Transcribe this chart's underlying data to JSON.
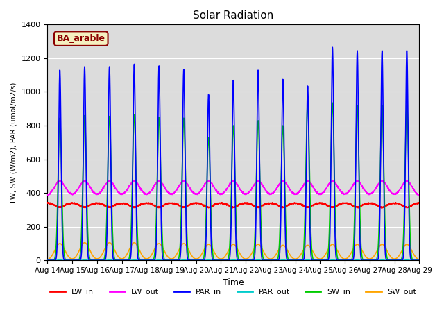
{
  "title": "Solar Radiation",
  "xlabel": "Time",
  "ylabel": "LW, SW (W/m2), PAR (umol/m2/s)",
  "ylim": [
    0,
    1400
  ],
  "annotation": "BA_arable",
  "annotation_color": "#8B0000",
  "annotation_bg": "#F5F0C0",
  "background_color": "#DCDCDC",
  "series": {
    "LW_in": {
      "color": "#FF0000",
      "lw": 1.2
    },
    "LW_out": {
      "color": "#FF00FF",
      "lw": 1.2
    },
    "PAR_in": {
      "color": "#0000FF",
      "lw": 1.2
    },
    "PAR_out": {
      "color": "#00CCCC",
      "lw": 1.2
    },
    "SW_in": {
      "color": "#00CC00",
      "lw": 1.2
    },
    "SW_out": {
      "color": "#FFA500",
      "lw": 1.2
    }
  },
  "start_day": 14,
  "end_day": 29,
  "n_points": 3000,
  "par_in_peaks": [
    1130,
    1150,
    1150,
    1165,
    1155,
    1135,
    985,
    1070,
    1130,
    1075,
    1035,
    1265,
    1245
  ],
  "sw_in_peaks": [
    845,
    860,
    855,
    865,
    850,
    845,
    730,
    800,
    830,
    800,
    940,
    935,
    920
  ],
  "sw_out_peaks": [
    100,
    105,
    105,
    105,
    100,
    100,
    95,
    95,
    95,
    90,
    90,
    95,
    95
  ],
  "lw_in_base": 340,
  "lw_in_day_dip": 25,
  "lw_out_base": 380,
  "lw_out_day_peak": 90,
  "grid_color": "#FFFFFF",
  "figsize": [
    6.4,
    4.8
  ],
  "dpi": 100
}
